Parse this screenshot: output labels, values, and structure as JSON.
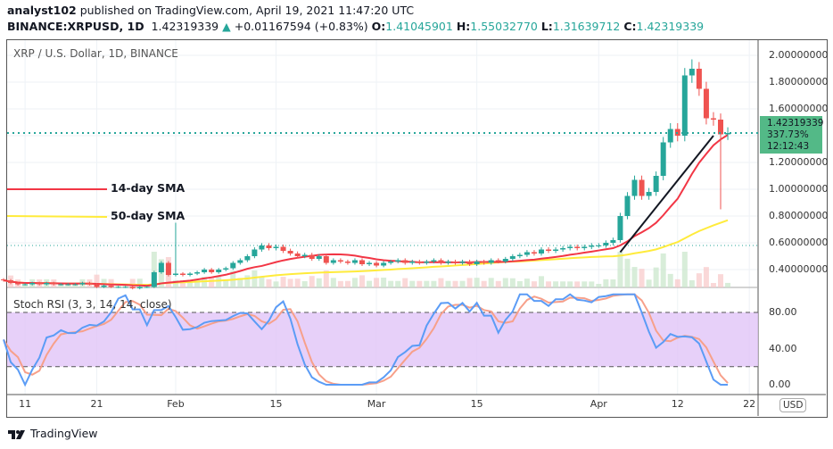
{
  "header": {
    "publisher": "analyst102",
    "published_text": "published on TradingView.com, April 19, 2021 11:47:20 UTC",
    "symbol": "BINANCE:XRPUSD, 1D",
    "last": "1.42319339",
    "change": "+0.01167594 (+0.83%)",
    "o_label": "O:",
    "o": "1.41045901",
    "h_label": "H:",
    "h": "1.55032770",
    "l_label": "L:",
    "l": "1.31639712",
    "c_label": "C:",
    "c": "1.42319339"
  },
  "chart_title": "XRP / U.S. Dollar, 1D, BINANCE",
  "currency": "USD",
  "price_tag": {
    "price": "1.42319339",
    "percent": "337.73%",
    "countdown": "12:12:43"
  },
  "annotations": {
    "sma14": "14-day SMA",
    "sma50": "50-day SMA"
  },
  "rsi_label": "Stoch RSI (3, 3, 14, 14, close)",
  "brand": "TradingView",
  "colors": {
    "up": "#26a69a",
    "down": "#ef5350",
    "sma14": "#f23645",
    "sma50": "#ffeb3b",
    "k": "#5b9cf6",
    "d": "#f7a08a",
    "band": "#e1c4f7"
  },
  "chart_data": {
    "type": "candlestick",
    "start_date": "2021-01-08",
    "price_ticks": [
      "2.00000000",
      "1.80000000",
      "1.60000000",
      "1.42319339",
      "1.20000000",
      "1.00000000",
      "0.80000000",
      "0.60000000",
      "0.40000000"
    ],
    "rsi_ticks": [
      "80.00",
      "40.00",
      "0.00"
    ],
    "date_ticks": [
      {
        "label": "11",
        "date": "2021-01-11"
      },
      {
        "label": "21",
        "date": "2021-01-21"
      },
      {
        "label": "Feb",
        "date": "2021-02-01"
      },
      {
        "label": "15",
        "date": "2021-02-15"
      },
      {
        "label": "Mar",
        "date": "2021-03-01"
      },
      {
        "label": "15",
        "date": "2021-03-15"
      },
      {
        "label": "Apr",
        "date": "2021-04-01"
      },
      {
        "label": "12",
        "date": "2021-04-12"
      },
      {
        "label": "22",
        "date": "2021-04-22"
      }
    ],
    "closes": [
      0.32,
      0.3,
      0.29,
      0.29,
      0.3,
      0.29,
      0.3,
      0.29,
      0.29,
      0.29,
      0.29,
      0.3,
      0.29,
      0.27,
      0.28,
      0.27,
      0.27,
      0.27,
      0.26,
      0.27,
      0.27,
      0.38,
      0.45,
      0.36,
      0.37,
      0.36,
      0.37,
      0.38,
      0.4,
      0.38,
      0.4,
      0.41,
      0.45,
      0.47,
      0.5,
      0.55,
      0.58,
      0.56,
      0.57,
      0.54,
      0.52,
      0.5,
      0.51,
      0.48,
      0.5,
      0.45,
      0.47,
      0.46,
      0.45,
      0.47,
      0.44,
      0.45,
      0.43,
      0.45,
      0.46,
      0.47,
      0.45,
      0.46,
      0.45,
      0.46,
      0.47,
      0.45,
      0.46,
      0.45,
      0.46,
      0.44,
      0.46,
      0.45,
      0.47,
      0.46,
      0.48,
      0.5,
      0.51,
      0.53,
      0.52,
      0.55,
      0.54,
      0.55,
      0.56,
      0.57,
      0.56,
      0.57,
      0.58,
      0.58,
      0.6,
      0.62,
      0.8,
      0.95,
      1.07,
      0.95,
      0.98,
      1.1,
      1.35,
      1.45,
      1.4,
      1.85,
      1.9,
      1.75,
      1.53,
      1.52,
      1.41,
      1.42
    ],
    "notable_highs": {
      "2021-02-01": 0.75,
      "2021-04-14": 1.97,
      "2021-04-15": 1.95
    },
    "notable_lows": {
      "2021-04-18": 0.85
    },
    "trendline": [
      {
        "date": "2021-04-04",
        "price": 0.53
      },
      {
        "date": "2021-04-17",
        "price": 1.4
      }
    ],
    "rsi_levels": [
      80,
      20
    ]
  }
}
